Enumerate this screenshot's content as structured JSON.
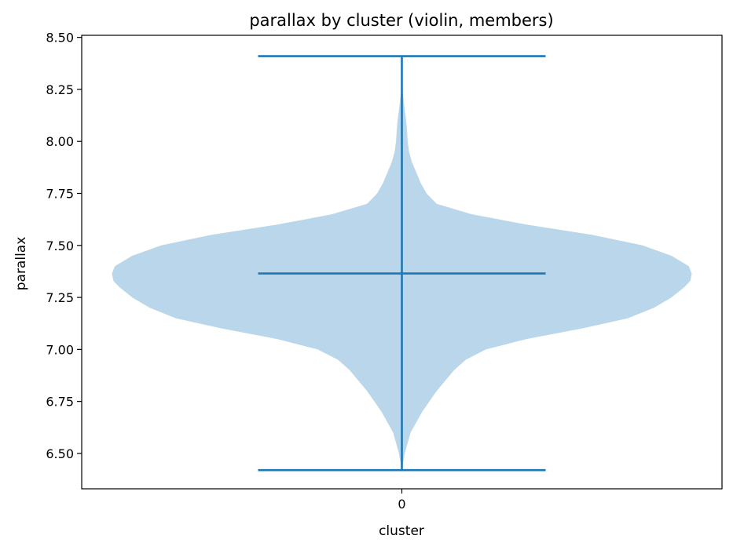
{
  "chart_data": {
    "type": "violin",
    "title": "parallax by cluster (violin, members)",
    "xlabel": "cluster",
    "ylabel": "parallax",
    "categories": [
      "0"
    ],
    "ylim": [
      6.33,
      8.51
    ],
    "yticks": [
      "6.50",
      "6.75",
      "7.00",
      "7.25",
      "7.50",
      "7.75",
      "8.00",
      "8.25",
      "8.50"
    ],
    "grid": false,
    "colors": {
      "body": "#bad6ea",
      "lines": "#1f77b4"
    },
    "violins": [
      {
        "category": "0",
        "min": 6.42,
        "max": 8.41,
        "median": 7.365,
        "density": [
          [
            6.42,
            0.0
          ],
          [
            6.5,
            0.01
          ],
          [
            6.6,
            0.03
          ],
          [
            6.7,
            0.07
          ],
          [
            6.8,
            0.12
          ],
          [
            6.9,
            0.18
          ],
          [
            6.95,
            0.22
          ],
          [
            7.0,
            0.29
          ],
          [
            7.05,
            0.43
          ],
          [
            7.1,
            0.62
          ],
          [
            7.15,
            0.78
          ],
          [
            7.2,
            0.87
          ],
          [
            7.25,
            0.93
          ],
          [
            7.3,
            0.975
          ],
          [
            7.33,
            0.995
          ],
          [
            7.365,
            1.0
          ],
          [
            7.4,
            0.99
          ],
          [
            7.45,
            0.93
          ],
          [
            7.5,
            0.83
          ],
          [
            7.55,
            0.66
          ],
          [
            7.6,
            0.43
          ],
          [
            7.65,
            0.24
          ],
          [
            7.7,
            0.12
          ],
          [
            7.75,
            0.085
          ],
          [
            7.8,
            0.065
          ],
          [
            7.85,
            0.05
          ],
          [
            7.9,
            0.035
          ],
          [
            7.95,
            0.025
          ],
          [
            8.0,
            0.02
          ],
          [
            8.05,
            0.018
          ],
          [
            8.1,
            0.015
          ],
          [
            8.15,
            0.01
          ],
          [
            8.2,
            0.006
          ],
          [
            8.25,
            0.002
          ],
          [
            8.28,
            0.0
          ]
        ]
      }
    ]
  }
}
